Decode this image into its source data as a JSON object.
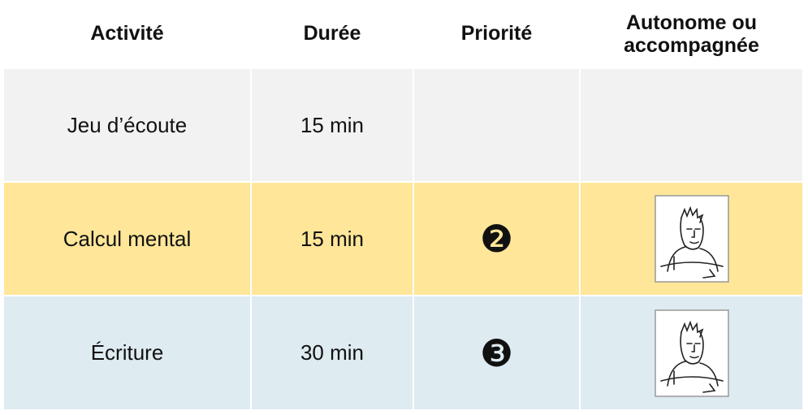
{
  "table": {
    "headers": [
      "Activité",
      "Durée",
      "Priorité",
      "Autonome ou accompagnée"
    ],
    "rows": [
      {
        "activity": "Jeu d’écoute",
        "duration": "15 min"
      },
      {
        "activity": "Calcul mental",
        "duration": "15 min",
        "priority": "❷"
      },
      {
        "activity": "Écriture",
        "duration": "30 min",
        "priority": "❸"
      }
    ]
  }
}
